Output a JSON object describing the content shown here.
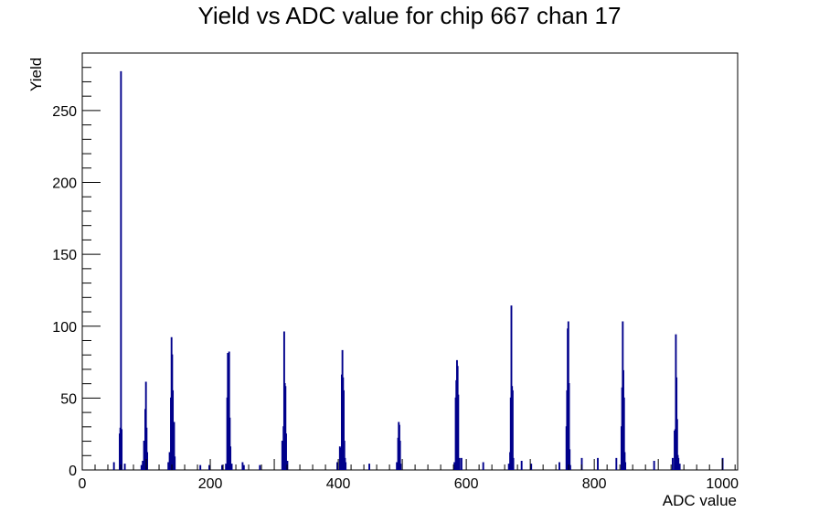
{
  "chart_data": {
    "type": "bar",
    "title": "Yield vs ADC value for chip 667 chan 17",
    "xlabel": "ADC value",
    "ylabel": "Yield",
    "xlim": [
      0,
      1024
    ],
    "ylim": [
      0,
      290
    ],
    "x_ticks": [
      0,
      200,
      400,
      600,
      800,
      1000
    ],
    "y_ticks": [
      0,
      50,
      100,
      150,
      200,
      250
    ],
    "color": "#00008b",
    "bins": [
      {
        "x": 49,
        "y": 5
      },
      {
        "x": 58,
        "y": 25
      },
      {
        "x": 59,
        "y": 29
      },
      {
        "x": 60,
        "y": 277
      },
      {
        "x": 61,
        "y": 28
      },
      {
        "x": 66,
        "y": 4
      },
      {
        "x": 92,
        "y": 3
      },
      {
        "x": 94,
        "y": 6
      },
      {
        "x": 96,
        "y": 20
      },
      {
        "x": 98,
        "y": 42
      },
      {
        "x": 99,
        "y": 61
      },
      {
        "x": 100,
        "y": 29
      },
      {
        "x": 101,
        "y": 12
      },
      {
        "x": 134,
        "y": 5
      },
      {
        "x": 136,
        "y": 12
      },
      {
        "x": 138,
        "y": 50
      },
      {
        "x": 139,
        "y": 92
      },
      {
        "x": 140,
        "y": 80
      },
      {
        "x": 141,
        "y": 55
      },
      {
        "x": 142,
        "y": 20
      },
      {
        "x": 143,
        "y": 33
      },
      {
        "x": 144,
        "y": 9
      },
      {
        "x": 184,
        "y": 3
      },
      {
        "x": 198,
        "y": 3
      },
      {
        "x": 218,
        "y": 3
      },
      {
        "x": 224,
        "y": 4
      },
      {
        "x": 226,
        "y": 50
      },
      {
        "x": 227,
        "y": 81
      },
      {
        "x": 229,
        "y": 82
      },
      {
        "x": 230,
        "y": 36
      },
      {
        "x": 231,
        "y": 16
      },
      {
        "x": 233,
        "y": 4
      },
      {
        "x": 250,
        "y": 5
      },
      {
        "x": 252,
        "y": 3
      },
      {
        "x": 277,
        "y": 3
      },
      {
        "x": 312,
        "y": 20
      },
      {
        "x": 314,
        "y": 30
      },
      {
        "x": 315,
        "y": 96
      },
      {
        "x": 316,
        "y": 60
      },
      {
        "x": 317,
        "y": 58
      },
      {
        "x": 318,
        "y": 25
      },
      {
        "x": 320,
        "y": 6
      },
      {
        "x": 398,
        "y": 5
      },
      {
        "x": 402,
        "y": 16
      },
      {
        "x": 404,
        "y": 15
      },
      {
        "x": 405,
        "y": 66
      },
      {
        "x": 406,
        "y": 83
      },
      {
        "x": 407,
        "y": 64
      },
      {
        "x": 408,
        "y": 55
      },
      {
        "x": 409,
        "y": 20
      },
      {
        "x": 410,
        "y": 8
      },
      {
        "x": 411,
        "y": 5
      },
      {
        "x": 448,
        "y": 4
      },
      {
        "x": 491,
        "y": 5
      },
      {
        "x": 493,
        "y": 22
      },
      {
        "x": 494,
        "y": 33
      },
      {
        "x": 495,
        "y": 31
      },
      {
        "x": 496,
        "y": 20
      },
      {
        "x": 497,
        "y": 4
      },
      {
        "x": 581,
        "y": 5
      },
      {
        "x": 583,
        "y": 50
      },
      {
        "x": 584,
        "y": 62
      },
      {
        "x": 585,
        "y": 76
      },
      {
        "x": 586,
        "y": 72
      },
      {
        "x": 587,
        "y": 52
      },
      {
        "x": 589,
        "y": 8
      },
      {
        "x": 592,
        "y": 8
      },
      {
        "x": 626,
        "y": 5
      },
      {
        "x": 666,
        "y": 4
      },
      {
        "x": 668,
        "y": 12
      },
      {
        "x": 669,
        "y": 50
      },
      {
        "x": 670,
        "y": 114
      },
      {
        "x": 671,
        "y": 58
      },
      {
        "x": 672,
        "y": 55
      },
      {
        "x": 673,
        "y": 8
      },
      {
        "x": 686,
        "y": 6
      },
      {
        "x": 701,
        "y": 4
      },
      {
        "x": 745,
        "y": 5
      },
      {
        "x": 756,
        "y": 30
      },
      {
        "x": 757,
        "y": 55
      },
      {
        "x": 758,
        "y": 98
      },
      {
        "x": 759,
        "y": 103
      },
      {
        "x": 760,
        "y": 60
      },
      {
        "x": 761,
        "y": 14
      },
      {
        "x": 762,
        "y": 3
      },
      {
        "x": 780,
        "y": 8
      },
      {
        "x": 805,
        "y": 8
      },
      {
        "x": 834,
        "y": 8
      },
      {
        "x": 842,
        "y": 30
      },
      {
        "x": 843,
        "y": 57
      },
      {
        "x": 844,
        "y": 103
      },
      {
        "x": 845,
        "y": 69
      },
      {
        "x": 846,
        "y": 50
      },
      {
        "x": 847,
        "y": 12
      },
      {
        "x": 848,
        "y": 5
      },
      {
        "x": 893,
        "y": 6
      },
      {
        "x": 922,
        "y": 8
      },
      {
        "x": 925,
        "y": 27
      },
      {
        "x": 926,
        "y": 28
      },
      {
        "x": 927,
        "y": 94
      },
      {
        "x": 928,
        "y": 64
      },
      {
        "x": 929,
        "y": 35
      },
      {
        "x": 930,
        "y": 10
      },
      {
        "x": 931,
        "y": 8
      },
      {
        "x": 933,
        "y": 4
      },
      {
        "x": 1000,
        "y": 8
      }
    ]
  }
}
